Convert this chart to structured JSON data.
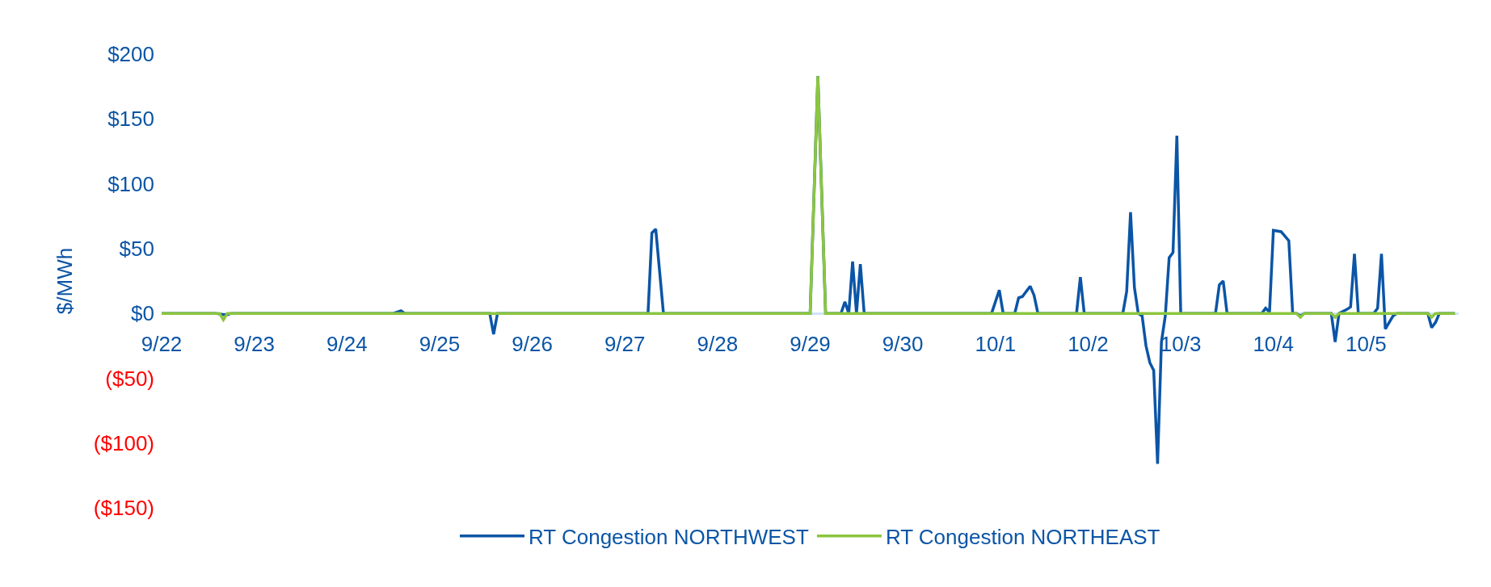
{
  "chart_data": {
    "type": "line",
    "ylabel": "$/MWh",
    "xlim": [
      "--09-22",
      "--10-06"
    ],
    "xticks": [
      {
        "value": "--09-22",
        "label": "9/22"
      },
      {
        "value": "--09-23",
        "label": "9/23"
      },
      {
        "value": "--09-24",
        "label": "9/24"
      },
      {
        "value": "--09-25",
        "label": "9/25"
      },
      {
        "value": "--09-26",
        "label": "9/26"
      },
      {
        "value": "--09-27",
        "label": "9/27"
      },
      {
        "value": "--09-28",
        "label": "9/28"
      },
      {
        "value": "--09-29",
        "label": "9/29"
      },
      {
        "value": "--09-30",
        "label": "9/30"
      },
      {
        "value": "--10-01",
        "label": "10/1"
      },
      {
        "value": "--10-02",
        "label": "10/2"
      },
      {
        "value": "--10-03",
        "label": "10/3"
      },
      {
        "value": "--10-04",
        "label": "10/4"
      },
      {
        "value": "--10-05",
        "label": "10/5"
      }
    ],
    "ylim": [
      -150,
      200
    ],
    "yticks": [
      {
        "value": -150,
        "label": "($150)"
      },
      {
        "value": -100,
        "label": "($100)"
      },
      {
        "value": -50,
        "label": "($50)"
      },
      {
        "value": 0,
        "label": "$0"
      },
      {
        "value": 50,
        "label": "$50"
      },
      {
        "value": 100,
        "label": "$100"
      },
      {
        "value": 150,
        "label": "$150"
      },
      {
        "value": 200,
        "label": "$200"
      }
    ],
    "grid": false,
    "legend": "bottom",
    "marker": "none",
    "line_style": "solid",
    "series": [
      {
        "name": "RT Congestion NORTHWEST",
        "color": "#0b55a6",
        "x": [
          "--09-22T00:00",
          "--09-22T14:00",
          "--09-22T16:00",
          "--09-22T17:00",
          "--09-22T18:00",
          "--09-24T12:00",
          "--09-24T14:00",
          "--09-24T15:00",
          "--09-25T13:00",
          "--09-25T14:00",
          "--09-25T15:00",
          "--09-27T06:00",
          "--09-27T07:00",
          "--09-27T08:00",
          "--09-27T10:00",
          "--09-29T00:00",
          "--09-29T02:00",
          "--09-29T04:00",
          "--09-29T08:00",
          "--09-29T09:00",
          "--09-29T10:00",
          "--09-29T11:00",
          "--09-29T12:00",
          "--09-29T13:00",
          "--09-29T14:00",
          "--09-30T23:00",
          "--10-01T01:00",
          "--10-01T02:00",
          "--10-01T05:00",
          "--10-01T06:00",
          "--10-01T07:00",
          "--10-01T09:00",
          "--10-01T10:00",
          "--10-01T11:00",
          "--10-01T21:00",
          "--10-01T22:00",
          "--10-01T23:00",
          "--10-02T09:00",
          "--10-02T10:00",
          "--10-02T11:00",
          "--10-02T12:00",
          "--10-02T13:00",
          "--10-02T14:00",
          "--10-02T15:00",
          "--10-02T16:00",
          "--10-02T17:00",
          "--10-02T18:00",
          "--10-02T19:00",
          "--10-02T20:00",
          "--10-02T21:00",
          "--10-02T22:00",
          "--10-02T23:00",
          "--10-03T00:00",
          "--10-03T09:00",
          "--10-03T10:00",
          "--10-03T11:00",
          "--10-03T12:00",
          "--10-03T21:00",
          "--10-03T22:00",
          "--10-03T23:00",
          "--10-04T00:00",
          "--10-04T02:00",
          "--10-04T04:00",
          "--10-04T05:00",
          "--10-04T06:00",
          "--10-04T07:00",
          "--10-04T08:00",
          "--10-04T15:00",
          "--10-04T16:00",
          "--10-04T17:00",
          "--10-04T19:00",
          "--10-04T20:00",
          "--10-04T21:00",
          "--10-04T22:00",
          "--10-05T02:00",
          "--10-05T03:00",
          "--10-05T04:00",
          "--10-05T05:00",
          "--10-05T07:00",
          "--10-05T08:00",
          "--10-05T16:00",
          "--10-05T17:00",
          "--10-05T18:00",
          "--10-05T19:00",
          "--10-05T23:00"
        ],
        "values": [
          0,
          0,
          -1,
          -1,
          0,
          0,
          2,
          0,
          0,
          -16,
          0,
          0,
          62,
          65,
          0,
          0,
          183,
          0,
          0,
          9,
          0,
          40,
          0,
          38,
          0,
          0,
          18,
          0,
          0,
          12,
          13,
          21,
          14,
          0,
          0,
          28,
          0,
          0,
          17,
          78,
          20,
          0,
          -2,
          -25,
          -38,
          -44,
          -116,
          -22,
          -2,
          43,
          47,
          137,
          0,
          0,
          22,
          25,
          0,
          0,
          4,
          1,
          64,
          63,
          56,
          0,
          0,
          -2,
          0,
          0,
          -22,
          0,
          3,
          5,
          46,
          0,
          0,
          4,
          46,
          -12,
          -2,
          0,
          0,
          -11,
          -7,
          0,
          0
        ]
      },
      {
        "name": "RT Congestion NORTHEAST",
        "color": "#8cc63f",
        "x": [
          "--09-22T00:00",
          "--09-22T15:00",
          "--09-22T16:00",
          "--09-22T17:00",
          "--09-29T00:00",
          "--09-29T02:00",
          "--09-29T04:00",
          "--10-04T06:00",
          "--10-04T07:00",
          "--10-04T08:00",
          "--10-04T15:00",
          "--10-04T16:00",
          "--10-04T17:00",
          "--10-05T16:00",
          "--10-05T17:00",
          "--10-05T18:00",
          "--10-05T23:00"
        ],
        "values": [
          0,
          0,
          -5,
          0,
          0,
          183,
          0,
          0,
          -3,
          0,
          0,
          -3,
          0,
          0,
          -3,
          0,
          0
        ]
      }
    ]
  }
}
